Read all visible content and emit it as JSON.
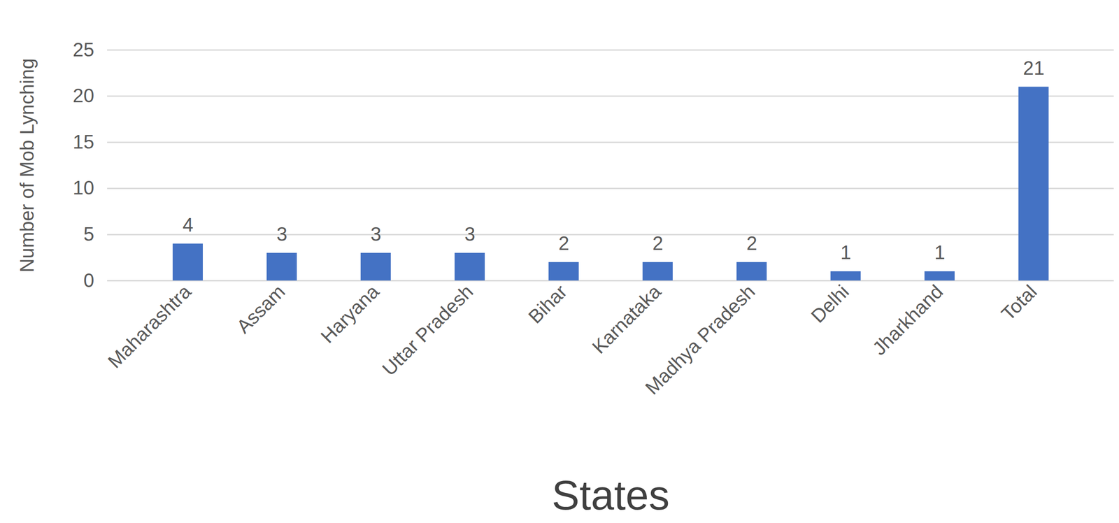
{
  "chart_data": {
    "type": "bar",
    "x_label": "States",
    "y_label": "Number of Mob Lynching",
    "categories": [
      "Maharashtra",
      "Assam",
      "Haryana",
      "Uttar Pradesh",
      "Bihar",
      "Karnataka",
      "Madhya Pradesh",
      "Delhi",
      "Jharkhand",
      "Total"
    ],
    "values": [
      4,
      3,
      3,
      3,
      2,
      2,
      2,
      1,
      1,
      21
    ],
    "color": "#4472c4",
    "ylim": [
      0,
      25
    ],
    "yticks": [
      0,
      5,
      10,
      15,
      20,
      25
    ],
    "grid": true,
    "data_labels": true
  }
}
